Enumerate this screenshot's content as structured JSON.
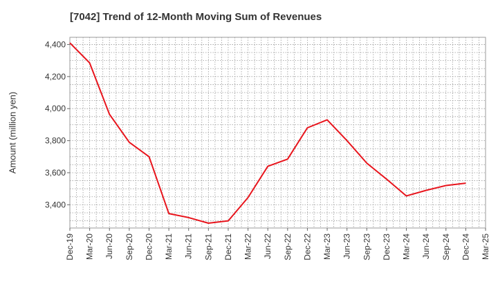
{
  "chart_data": {
    "type": "line",
    "title": "[7042]  Trend of 12-Month Moving Sum of Revenues",
    "xlabel": "",
    "ylabel": "Amount (million yen)",
    "x": [
      "Dec-19",
      "Mar-20",
      "Jun-20",
      "Sep-20",
      "Dec-20",
      "Mar-21",
      "Jun-21",
      "Sep-21",
      "Dec-21",
      "Mar-22",
      "Jun-22",
      "Sep-22",
      "Dec-22",
      "Mar-23",
      "Jun-23",
      "Sep-23",
      "Dec-23",
      "Mar-24",
      "Jun-24",
      "Sep-24",
      "Dec-24",
      "Mar-25"
    ],
    "series": [
      {
        "name": "",
        "color": "#e8141c",
        "values": [
          4410,
          4285,
          3965,
          3790,
          3700,
          3345,
          3320,
          3285,
          3300,
          3445,
          3640,
          3685,
          3880,
          3930,
          3800,
          3660,
          3560,
          3455,
          3490,
          3520,
          3535,
          null
        ]
      }
    ],
    "y_ticks": [
      3400,
      3600,
      3800,
      4000,
      4200,
      4400
    ],
    "y_tick_labels": [
      "3,400",
      "3,600",
      "3,800",
      "4,000",
      "4,200",
      "4,400"
    ],
    "ylim": [
      3255,
      4445
    ],
    "grid": true,
    "legend": "none"
  }
}
